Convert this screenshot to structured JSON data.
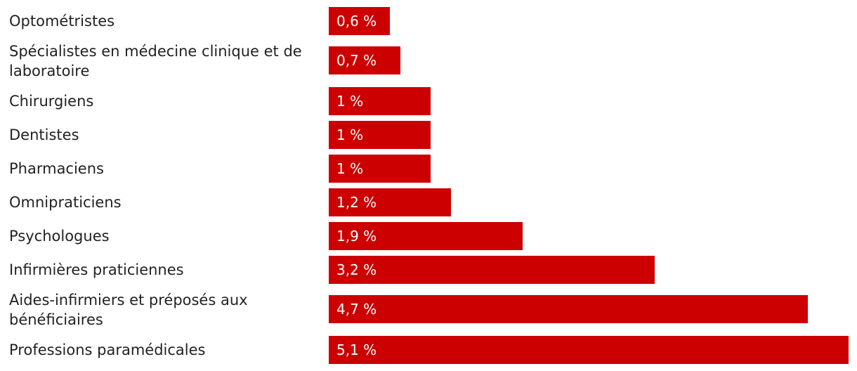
{
  "chart_data": {
    "type": "bar",
    "orientation": "horizontal",
    "categories": [
      "Optométristes",
      "Spécialistes en médecine clinique et de laboratoire",
      "Chirurgiens",
      "Dentistes",
      "Pharmaciens",
      "Omnipraticiens",
      "Psychologues",
      "Infirmières praticiennes",
      "Aides-infirmiers et préposés aux bénéficiaires",
      "Professions paramédicales"
    ],
    "values": [
      0.6,
      0.7,
      1,
      1,
      1,
      1.2,
      1.9,
      3.2,
      4.7,
      5.1
    ],
    "value_labels": [
      "0,6 %",
      "0,7 %",
      "1 %",
      "1 %",
      "1 %",
      "1,2 %",
      "1,9 %",
      "3,2 %",
      "4,7 %",
      "5,1 %"
    ],
    "xlim": [
      0,
      5.1
    ],
    "grid": false,
    "colors": {
      "bar": "#cc0000",
      "label": "#222222",
      "value_label": "#ffffff"
    }
  }
}
